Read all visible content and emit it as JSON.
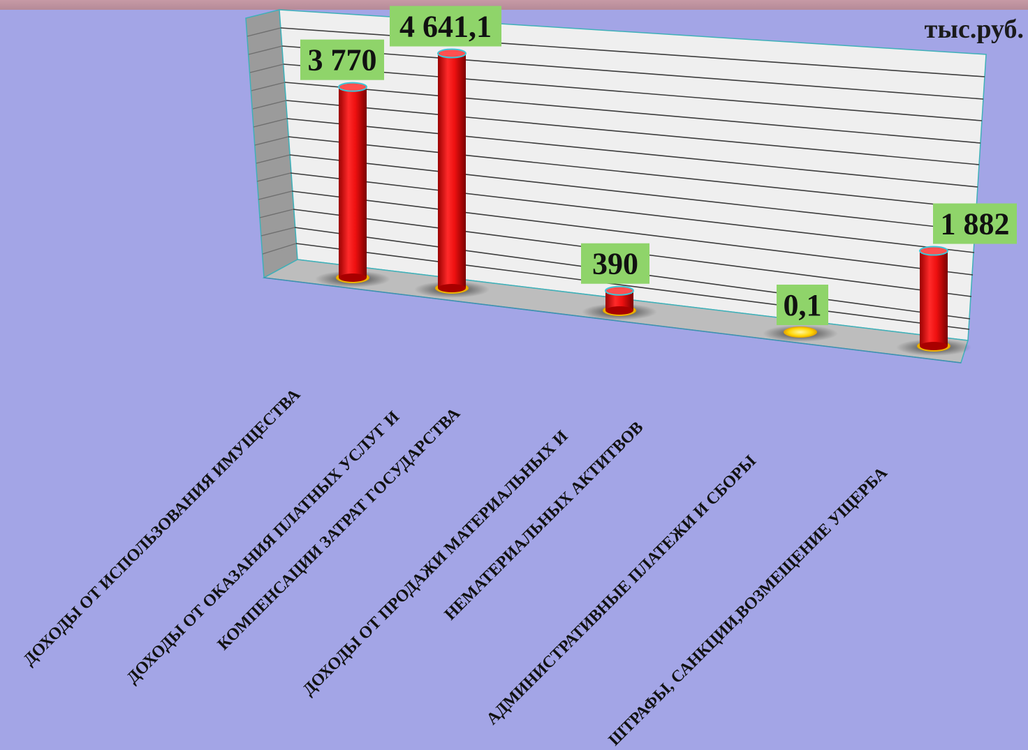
{
  "unit": "тыс.руб.",
  "colors": {
    "background": "#a3a5e6",
    "bar": "#ee1111",
    "label_box": "#8fd46a",
    "wall": "#efefef",
    "side_wall": "#9b9b9b",
    "floor": "#bdbdbd"
  },
  "chart_data": {
    "type": "bar",
    "style": "3d-cylinder",
    "unit": "тыс.руб.",
    "grid": true,
    "legend": "none",
    "categories": [
      [
        "ДОХОДЫ ОТ ИСПОЛЬЗОВАНИЯ ИМУЩЕСТВА"
      ],
      [
        "ДОХОДЫ ОТ ОКАЗАНИЯ ПЛАТНЫХ УСЛУГ И",
        "КОМПЕНСАЦИИ ЗАТРАТ ГОСУДАРСТВА"
      ],
      [
        "ДОХОДЫ ОТ ПРОДАЖИ МАТЕРИАЛЬНЫХ И",
        "НЕМАТЕРИАЛЬНЫХ АКТИТВОВ"
      ],
      [
        "АДМИНИСТРАТИВНЫЕ  ПЛАТЕЖИ И СБОРЫ"
      ],
      [
        "ШТРАФЫ, САНКЦИИ,ВОЗМЕЩЕНИЕ  УЩЕРБА"
      ]
    ],
    "values": [
      3770,
      4641.1,
      390,
      0.1,
      1882
    ],
    "data_labels": [
      "3 770",
      "4 641,1",
      "390",
      "0,1",
      "1 882"
    ]
  }
}
